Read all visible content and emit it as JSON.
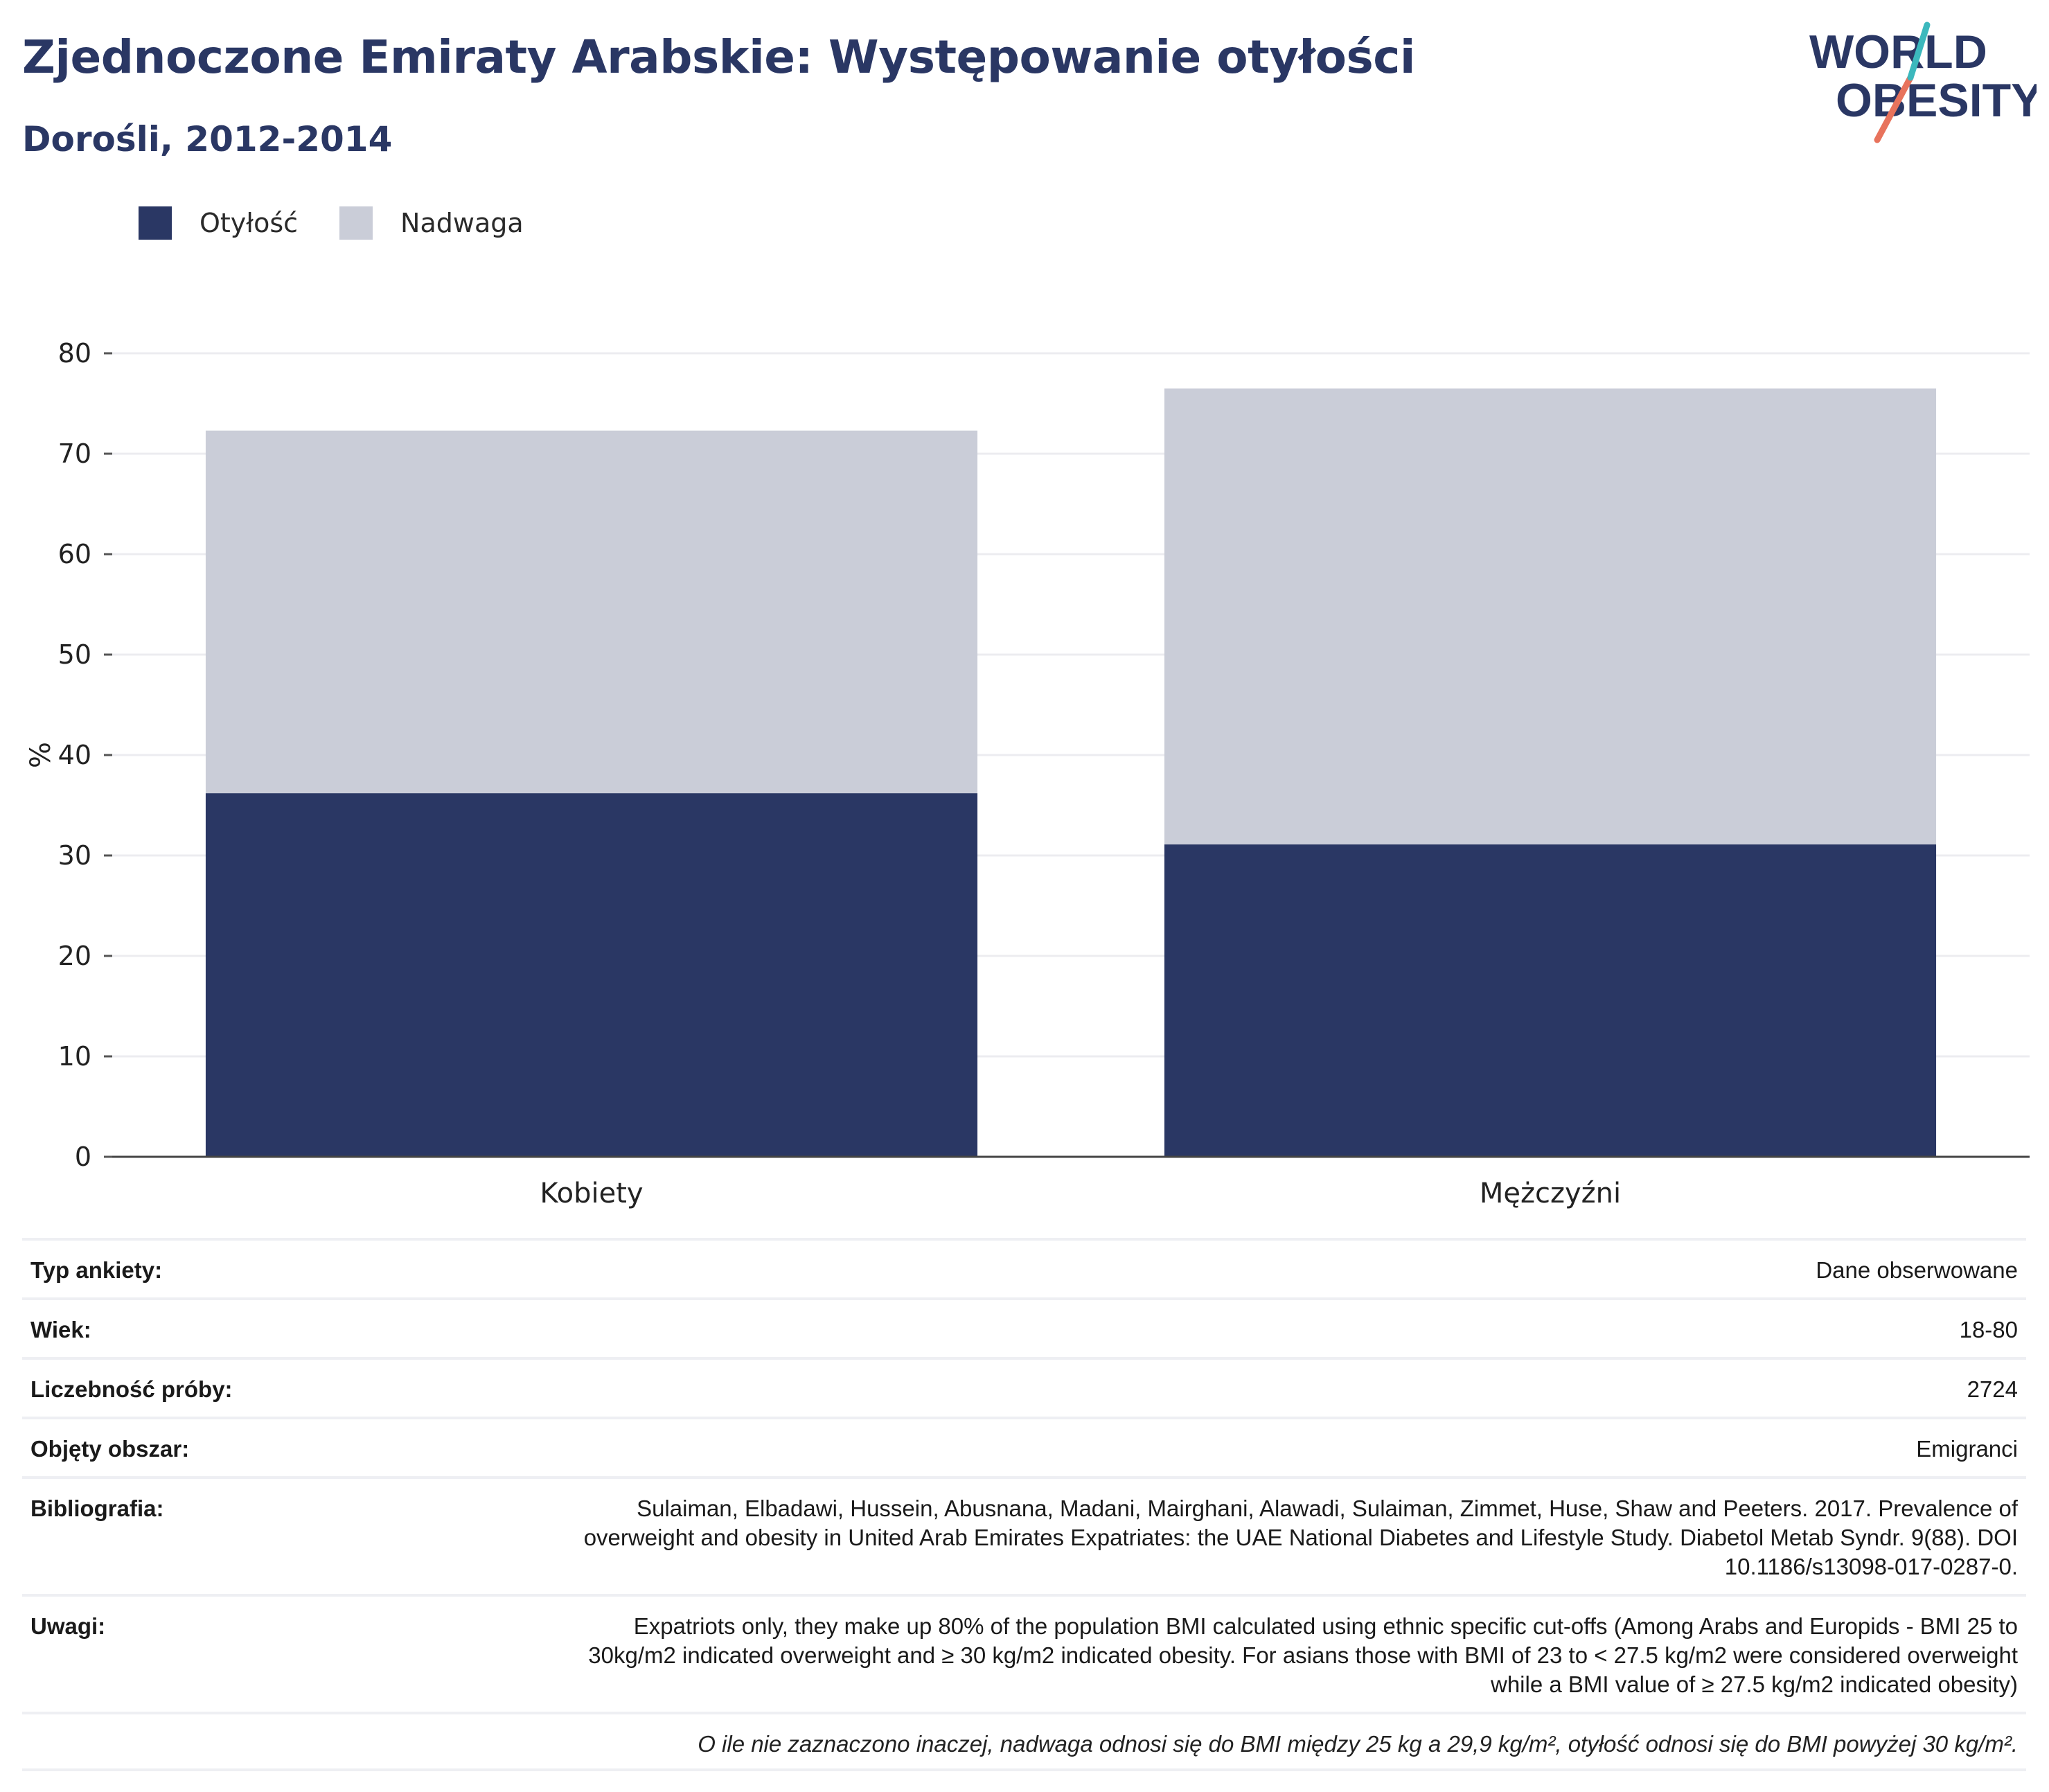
{
  "header": {
    "title": "Zjednoczone Emiraty Arabskie: Występowanie otyłości",
    "subtitle": "Dorośli, 2012-2014"
  },
  "logo": {
    "line1": "WORLD",
    "line2": "OBESITY"
  },
  "colors": {
    "obesity": "#2a3764",
    "overweight": "#cacdd8",
    "title": "#2a3764",
    "logo_teal": "#3cb8bd",
    "logo_coral": "#e8735c"
  },
  "chart_data": {
    "type": "bar",
    "stacked": true,
    "categories": [
      "Kobiety",
      "Mężczyźni"
    ],
    "series": [
      {
        "name": "Otyłość",
        "values": [
          36.2,
          31.1
        ]
      },
      {
        "name": "Nadwaga",
        "values": [
          36.1,
          45.4
        ]
      }
    ],
    "ylabel": "%",
    "ylim": [
      0,
      80
    ],
    "yticks": [
      "0",
      "10",
      "20",
      "30",
      "40",
      "50",
      "60",
      "70",
      "80"
    ],
    "grid": true,
    "legend_position": "top-left"
  },
  "info": [
    {
      "label": "Typ ankiety:",
      "value": "Dane obserwowane"
    },
    {
      "label": "Wiek:",
      "value": "18-80"
    },
    {
      "label": "Liczebność próby:",
      "value": "2724"
    },
    {
      "label": "Objęty obszar:",
      "value": "Emigranci"
    },
    {
      "label": "Bibliografia:",
      "value": "Sulaiman, Elbadawi, Hussein, Abusnana, Madani, Mairghani, Alawadi, Sulaiman, Zimmet, Huse, Shaw and Peeters. 2017. Prevalence of overweight and obesity in United Arab Emirates Expatriates: the UAE National Diabetes and Lifestyle Study. Diabetol Metab Syndr. 9(88). DOI 10.1186/s13098-017-0287-0."
    },
    {
      "label": "Uwagi:",
      "value": "Expatriots only, they make up 80% of the population BMI calculated using ethnic specific cut-offs (Among Arabs and Europids - BMI 25 to 30kg/m2 indicated overweight and ≥ 30 kg/m2 indicated obesity. For asians those with BMI of 23 to < 27.5 kg/m2 were considered overweight while a BMI value of ≥ 27.5 kg/m2 indicated obesity)"
    }
  ],
  "footnote": "O ile nie zaznaczono inaczej, nadwaga odnosi się do BMI między 25 kg a 29,9 kg/m², otyłość odnosi się do BMI powyżej 30 kg/m²."
}
